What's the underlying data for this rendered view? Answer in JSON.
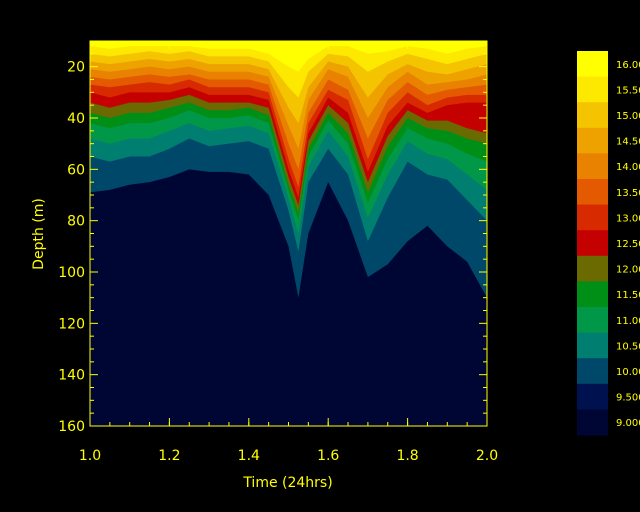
{
  "chart_data": {
    "type": "heatmap",
    "subtype": "filled-contour",
    "xlabel": "Time (24hrs)",
    "ylabel": "Depth (m)",
    "xlim": [
      1.0,
      2.0
    ],
    "ylim": [
      160,
      10
    ],
    "y_inverted": true,
    "x_ticks": [
      "1.0",
      "1.2",
      "1.4",
      "1.6",
      "1.8",
      "2.0"
    ],
    "y_ticks": [
      "20",
      "40",
      "60",
      "80",
      "100",
      "120",
      "140",
      "160"
    ],
    "grid": false,
    "colorbar": {
      "position": "right",
      "tick_labels": [
        "16.00",
        "15.50",
        "15.00",
        "14.50",
        "14.00",
        "13.50",
        "13.00",
        "12.50",
        "12.00",
        "11.50",
        "11.00",
        "10.50",
        "10.00",
        "9.500",
        "9.000"
      ],
      "bands": [
        {
          "from": 9.0,
          "to": 9.5,
          "color": "#000633"
        },
        {
          "from": 9.5,
          "to": 10.0,
          "color": "#00114f"
        },
        {
          "from": 10.0,
          "to": 10.5,
          "color": "#00486a"
        },
        {
          "from": 10.5,
          "to": 11.0,
          "color": "#007f70"
        },
        {
          "from": 11.0,
          "to": 11.5,
          "color": "#009848"
        },
        {
          "from": 11.5,
          "to": 12.0,
          "color": "#008f16"
        },
        {
          "from": 12.0,
          "to": 12.5,
          "color": "#6b6a00"
        },
        {
          "from": 12.5,
          "to": 13.0,
          "color": "#c40000"
        },
        {
          "from": 13.0,
          "to": 13.5,
          "color": "#d82a00"
        },
        {
          "from": 13.5,
          "to": 14.0,
          "color": "#e35a00"
        },
        {
          "from": 14.0,
          "to": 14.5,
          "color": "#e88200"
        },
        {
          "from": 14.5,
          "to": 15.0,
          "color": "#eea200"
        },
        {
          "from": 15.0,
          "to": 15.5,
          "color": "#f5c400"
        },
        {
          "from": 15.5,
          "to": 16.0,
          "color": "#fde800"
        },
        {
          "from": 16.0,
          "to": 16.5,
          "color": "#ffff00"
        }
      ]
    },
    "x_samples": [
      1.0,
      1.05,
      1.1,
      1.15,
      1.2,
      1.25,
      1.3,
      1.35,
      1.4,
      1.45,
      1.5,
      1.525,
      1.55,
      1.6,
      1.65,
      1.7,
      1.75,
      1.8,
      1.85,
      1.9,
      1.95,
      2.0
    ],
    "isotherm_depths": [
      {
        "level": 16.0,
        "depth": [
          12,
          13,
          12,
          12,
          12,
          12,
          13,
          13,
          13,
          15,
          20,
          22,
          17,
          12,
          12,
          15,
          14,
          12,
          13,
          15,
          13,
          12
        ]
      },
      {
        "level": 15.5,
        "depth": [
          15,
          16,
          15,
          14,
          15,
          14,
          16,
          16,
          16,
          18,
          28,
          32,
          22,
          15,
          16,
          22,
          18,
          15,
          17,
          19,
          17,
          15
        ]
      },
      {
        "level": 15.0,
        "depth": [
          18,
          19,
          18,
          17,
          18,
          17,
          19,
          19,
          19,
          21,
          36,
          42,
          28,
          18,
          20,
          32,
          23,
          19,
          22,
          23,
          21,
          19
        ]
      },
      {
        "level": 14.5,
        "depth": [
          21,
          22,
          21,
          20,
          21,
          20,
          22,
          22,
          22,
          24,
          43,
          52,
          33,
          21,
          24,
          40,
          28,
          22,
          27,
          26,
          25,
          23
        ]
      },
      {
        "level": 14.0,
        "depth": [
          24,
          25,
          24,
          23,
          24,
          23,
          25,
          25,
          25,
          27,
          50,
          60,
          38,
          25,
          29,
          48,
          33,
          26,
          31,
          29,
          28,
          27
        ]
      },
      {
        "level": 13.5,
        "depth": [
          27,
          28,
          27,
          26,
          27,
          25,
          28,
          28,
          28,
          30,
          56,
          67,
          42,
          29,
          33,
          56,
          38,
          30,
          35,
          32,
          31,
          31
        ]
      },
      {
        "level": 13.0,
        "depth": [
          30,
          32,
          30,
          30,
          30,
          28,
          31,
          31,
          31,
          33,
          60,
          71,
          46,
          32,
          38,
          61,
          43,
          34,
          38,
          35,
          34,
          34
        ]
      },
      {
        "level": 12.5,
        "depth": [
          34,
          36,
          34,
          34,
          33,
          31,
          34,
          34,
          34,
          36,
          63,
          74,
          49,
          35,
          42,
          65,
          47,
          37,
          41,
          41,
          44,
          46
        ]
      },
      {
        "level": 12.0,
        "depth": [
          38,
          40,
          38,
          38,
          36,
          34,
          37,
          37,
          36,
          39,
          66,
          77,
          52,
          38,
          46,
          69,
          51,
          40,
          44,
          45,
          48,
          50
        ]
      },
      {
        "level": 11.5,
        "depth": [
          42,
          44,
          42,
          42,
          40,
          37,
          40,
          40,
          39,
          42,
          68,
          80,
          55,
          41,
          50,
          73,
          56,
          44,
          48,
          50,
          54,
          57
        ]
      },
      {
        "level": 11.0,
        "depth": [
          48,
          50,
          48,
          48,
          45,
          42,
          45,
          44,
          43,
          46,
          71,
          85,
          59,
          45,
          55,
          79,
          62,
          49,
          54,
          56,
          62,
          68
        ]
      },
      {
        "level": 10.5,
        "depth": [
          55,
          57,
          55,
          55,
          52,
          48,
          51,
          50,
          49,
          52,
          76,
          92,
          65,
          52,
          62,
          88,
          71,
          57,
          62,
          64,
          72,
          80
        ]
      },
      {
        "level": 10.0,
        "depth": [
          69,
          68,
          66,
          65,
          63,
          60,
          61,
          61,
          62,
          70,
          90,
          110,
          85,
          65,
          80,
          102,
          97,
          88,
          82,
          90,
          96,
          110
        ]
      },
      {
        "level": 9.5,
        "depth": [
          null,
          null,
          null,
          null,
          null,
          null,
          null,
          null,
          null,
          null,
          null,
          null,
          null,
          null,
          null,
          157,
          151,
          149,
          150,
          null,
          null,
          null
        ]
      }
    ]
  }
}
